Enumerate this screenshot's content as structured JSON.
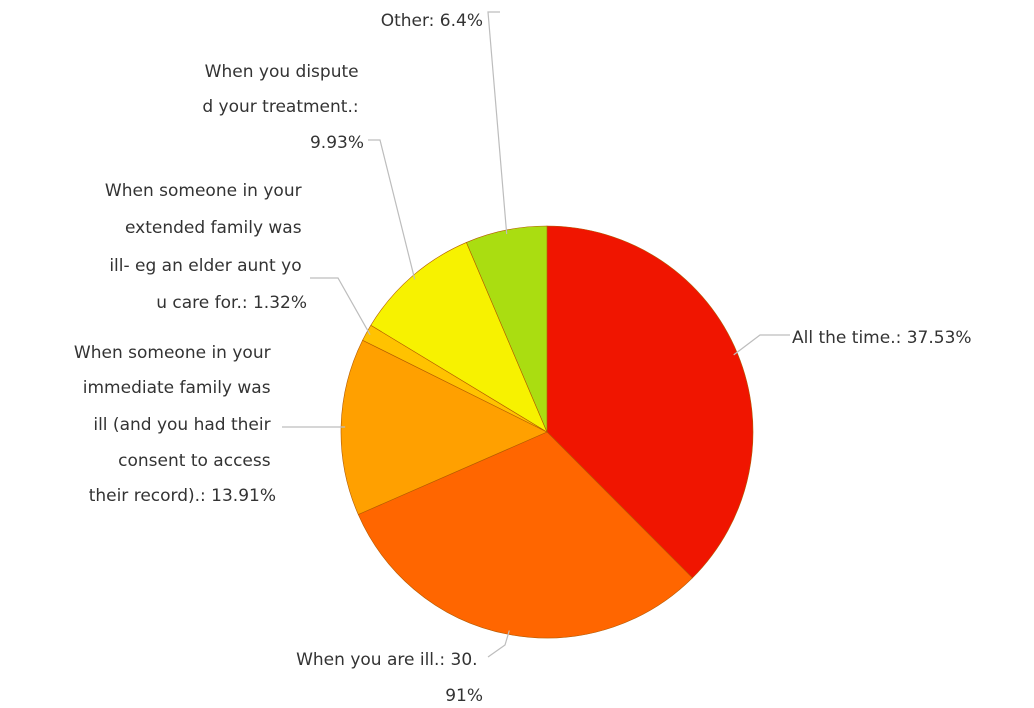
{
  "chart_data": {
    "type": "pie",
    "start": "12 o'clock",
    "direction": "clockwise",
    "slices": [
      {
        "label": "All the time.: 37.53%",
        "value": 37.53,
        "color": "#f01500"
      },
      {
        "label": "When you are ill.: 30.91%",
        "value": 30.91,
        "color": "#ff6600"
      },
      {
        "label": "When someone in your immediate  family was ill (and you had their consent to access their record).: 13.91%",
        "value": 13.91,
        "color": "#ffa000"
      },
      {
        "label": "When someone in your extended family  was ill- eg an elder aunt you care for.: 1.32%",
        "value": 1.32,
        "color": "#ffc200"
      },
      {
        "label": "When you disputed your treatment.: 9.93%",
        "value": 9.93,
        "color": "#f7f200"
      },
      {
        "label": "Other: 6.4%",
        "value": 6.4,
        "color": "#aadd11"
      }
    ]
  }
}
